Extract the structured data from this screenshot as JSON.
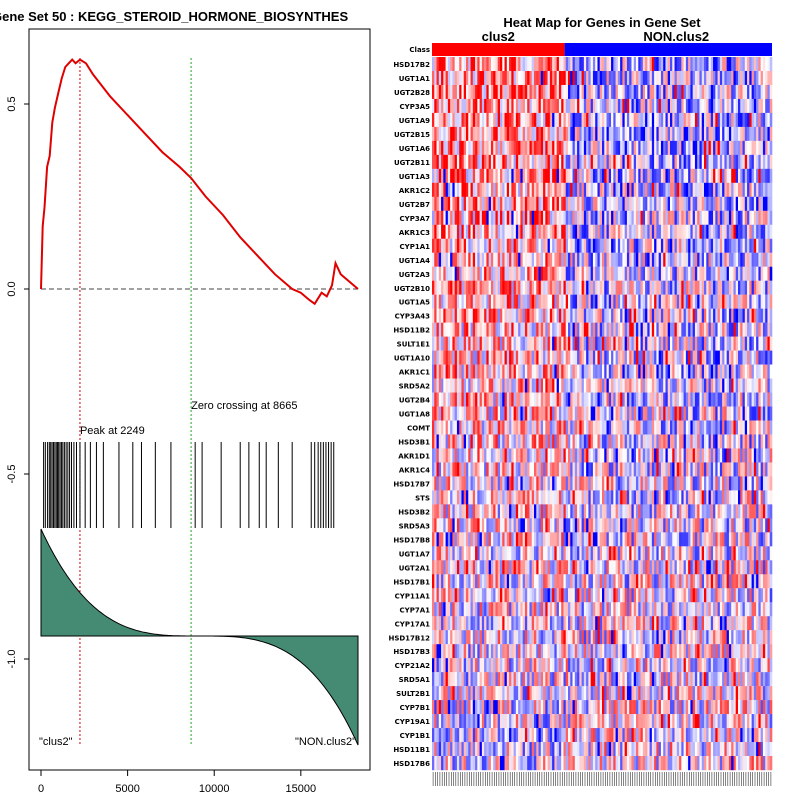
{
  "colors": {
    "es_curve": "#e00000",
    "peak_line": "#e00000",
    "zero_line": "#22aa22",
    "ranked_fill": "#458b74",
    "group_clus2": "#ff0000",
    "group_non": "#0000ff"
  },
  "chart_data": [
    {
      "type": "line",
      "title": "Gene Set  50 : KEGG_STEROID_HORMONE_BIOSYNTHES",
      "xlim": [
        0,
        18500
      ],
      "ylim": [
        -1.22,
        0.64
      ],
      "xticks": [
        0,
        5000,
        10000,
        15000
      ],
      "xtick_labels": [
        "0",
        "5000",
        "10000",
        "15000"
      ],
      "yticks": [
        0.5,
        0.0,
        -0.5,
        -1.0
      ],
      "ytick_labels": [
        "0.5",
        "0.0",
        "-0.5",
        "-1.0"
      ],
      "series": [
        {
          "name": "Enrichment score",
          "x": [
            0,
            100,
            200,
            350,
            500,
            650,
            800,
            1000,
            1200,
            1400,
            1600,
            1800,
            2000,
            2249,
            2600,
            3000,
            4000,
            5000,
            6000,
            7000,
            8000,
            8665,
            9500,
            10500,
            11500,
            12500,
            13500,
            14500,
            15000,
            15500,
            15800,
            16200,
            16500,
            16800,
            17000,
            17300,
            18300
          ],
          "values": [
            0.0,
            0.17,
            0.22,
            0.33,
            0.36,
            0.45,
            0.49,
            0.53,
            0.57,
            0.6,
            0.61,
            0.62,
            0.61,
            0.62,
            0.61,
            0.58,
            0.52,
            0.47,
            0.42,
            0.37,
            0.33,
            0.3,
            0.25,
            0.2,
            0.14,
            0.09,
            0.04,
            0.0,
            -0.01,
            -0.03,
            -0.04,
            -0.01,
            -0.02,
            0.01,
            0.07,
            0.04,
            0.0
          ]
        }
      ],
      "peak": {
        "x": 2249,
        "label": "Peak at 2249"
      },
      "zero_crossing": {
        "x": 8665,
        "label": "Zero crossing at 8665"
      },
      "hit_positions": [
        150,
        250,
        380,
        480,
        560,
        640,
        720,
        800,
        880,
        950,
        1020,
        1100,
        1180,
        1260,
        1350,
        1450,
        1550,
        1650,
        1760,
        1900,
        2050,
        2249,
        2550,
        2850,
        3200,
        3600,
        4500,
        5300,
        5800,
        6600,
        7500,
        8900,
        9300,
        10400,
        11500,
        12000,
        12600,
        13000,
        13700,
        14500,
        15600,
        15800,
        16000,
        16150,
        16300,
        16450,
        16600,
        16750,
        16900
      ],
      "ranked_metric": {
        "top": 0.25,
        "bottom": -0.3
      },
      "group_labels": {
        "left": "\"clus2\"",
        "right": "\"NON.clus2\""
      }
    },
    {
      "type": "heatmap",
      "title": "Heat Map for Genes in Gene Set",
      "class_label": "Class",
      "groups": [
        {
          "name": "clus2",
          "fraction": 0.39
        },
        {
          "name": "NON.clus2",
          "fraction": 0.61
        }
      ],
      "rows": [
        "HSD17B2",
        "UGT1A1",
        "UGT2B28",
        "CYP3A5",
        "UGT1A9",
        "UGT2B15",
        "UGT1A6",
        "UGT2B11",
        "UGT1A3",
        "AKR1C2",
        "UGT2B7",
        "CYP3A7",
        "AKR1C3",
        "CYP1A1",
        "UGT1A4",
        "UGT2A3",
        "UGT2B10",
        "UGT1A5",
        "CYP3A43",
        "HSD11B2",
        "SULT1E1",
        "UGT1A10",
        "AKR1C1",
        "SRD5A2",
        "UGT2B4",
        "UGT1A8",
        "COMT",
        "HSD3B1",
        "AKR1D1",
        "AKR1C4",
        "HSD17B7",
        "STS",
        "HSD3B2",
        "SRD5A3",
        "HSD17B8",
        "UGT1A7",
        "UGT2A1",
        "HSD17B1",
        "CYP11A1",
        "CYP7A1",
        "CYP17A1",
        "HSD17B12",
        "HSD17B3",
        "CYP21A2",
        "SRD5A1",
        "SULT2B1",
        "CYP7B1",
        "CYP19A1",
        "CYP1B1",
        "HSD11B1",
        "HSD17B6"
      ],
      "n_columns": 150
    }
  ]
}
